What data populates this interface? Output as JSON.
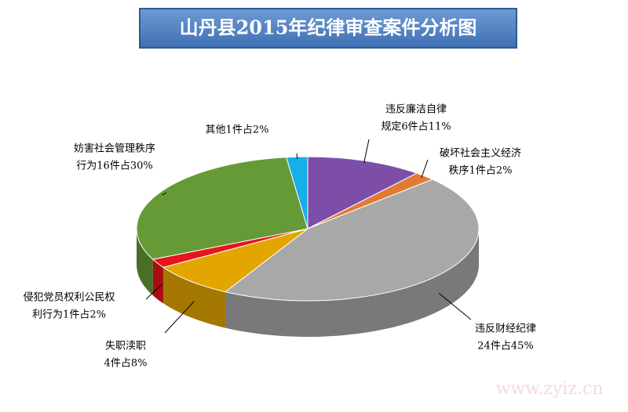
{
  "chart_data": {
    "type": "pie3d",
    "title": "山丹县2015年纪律审查案件分析图",
    "values": [
      11,
      2,
      45,
      8,
      2,
      30,
      2
    ],
    "value_labels": [
      [
        "违反廉洁自律",
        "规定6件占11%"
      ],
      [
        "破坏社会主义经济",
        "秩序1件占2%"
      ],
      [
        "违反财经纪律",
        "24件占45%"
      ],
      [
        "失职渎职",
        "4件占8%"
      ],
      [
        "侵犯党员权利公民权",
        "利行为1件占2%"
      ],
      [
        "妨害社会管理秩序",
        "行为16件占30%"
      ],
      [
        "其他1件占2%"
      ]
    ],
    "colors": [
      "#7d4ea8",
      "#e07a35",
      "#a8a8a8",
      "#e3a600",
      "#e8141a",
      "#669a36",
      "#18aee6"
    ],
    "watermark": "www.zyiz.cn"
  }
}
